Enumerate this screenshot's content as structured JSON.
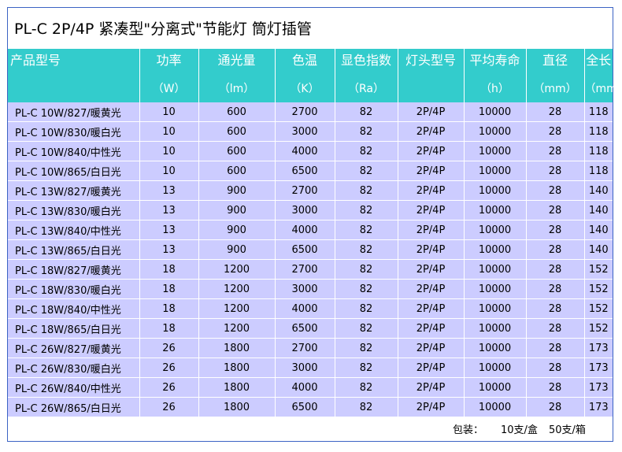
{
  "title": "PL-C 2P/4P 紧凑型\"分离式\"节能灯 筒灯插管",
  "headers": [
    {
      "name": "产品型号",
      "unit": ""
    },
    {
      "name": "功率",
      "unit": "（W）"
    },
    {
      "name": "通光量",
      "unit": "（lm）"
    },
    {
      "name": "色温",
      "unit": "（K）"
    },
    {
      "name": "显色指数",
      "unit": "（Ra）"
    },
    {
      "name": "灯头型号",
      "unit": ""
    },
    {
      "name": "平均寿命",
      "unit": "（h）"
    },
    {
      "name": "直径",
      "unit": "（mm）"
    },
    {
      "name": "全长",
      "unit": "（mm）"
    }
  ],
  "rows": [
    [
      "PL-C 10W/827/暖黄光",
      "10",
      "600",
      "2700",
      "82",
      "2P/4P",
      "10000",
      "28",
      "118"
    ],
    [
      "PL-C 10W/830/暖白光",
      "10",
      "600",
      "3000",
      "82",
      "2P/4P",
      "10000",
      "28",
      "118"
    ],
    [
      "PL-C 10W/840/中性光",
      "10",
      "600",
      "4000",
      "82",
      "2P/4P",
      "10000",
      "28",
      "118"
    ],
    [
      "PL-C 10W/865/白日光",
      "10",
      "600",
      "6500",
      "82",
      "2P/4P",
      "10000",
      "28",
      "118"
    ],
    [
      "PL-C 13W/827/暖黄光",
      "13",
      "900",
      "2700",
      "82",
      "2P/4P",
      "10000",
      "28",
      "140"
    ],
    [
      "PL-C 13W/830/暖白光",
      "13",
      "900",
      "3000",
      "82",
      "2P/4P",
      "10000",
      "28",
      "140"
    ],
    [
      "PL-C 13W/840/中性光",
      "13",
      "900",
      "4000",
      "82",
      "2P/4P",
      "10000",
      "28",
      "140"
    ],
    [
      "PL-C 13W/865/白日光",
      "13",
      "900",
      "6500",
      "82",
      "2P/4P",
      "10000",
      "28",
      "140"
    ],
    [
      "PL-C 18W/827/暖黄光",
      "18",
      "1200",
      "2700",
      "82",
      "2P/4P",
      "10000",
      "28",
      "152"
    ],
    [
      "PL-C 18W/830/暖白光",
      "18",
      "1200",
      "3000",
      "82",
      "2P/4P",
      "10000",
      "28",
      "152"
    ],
    [
      "PL-C 18W/840/中性光",
      "18",
      "1200",
      "4000",
      "82",
      "2P/4P",
      "10000",
      "28",
      "152"
    ],
    [
      "PL-C 18W/865/白日光",
      "18",
      "1200",
      "6500",
      "82",
      "2P/4P",
      "10000",
      "28",
      "152"
    ],
    [
      "PL-C 26W/827/暖黄光",
      "26",
      "1800",
      "2700",
      "82",
      "2P/4P",
      "10000",
      "28",
      "173"
    ],
    [
      "PL-C 26W/830/暖白光",
      "26",
      "1800",
      "3000",
      "82",
      "2P/4P",
      "10000",
      "28",
      "173"
    ],
    [
      "PL-C 26W/840/中性光",
      "26",
      "1800",
      "4000",
      "82",
      "2P/4P",
      "10000",
      "28",
      "173"
    ],
    [
      "PL-C 26W/865/白日光",
      "26",
      "1800",
      "6500",
      "82",
      "2P/4P",
      "10000",
      "28",
      "173"
    ]
  ],
  "footer": {
    "pack_label": "包装：",
    "per_box": "10支/盒",
    "per_case": "50支/箱"
  },
  "colors": {
    "header_bg": "#33cccc",
    "row_bg": "#ccccff",
    "frame_border": "#3b63c4"
  }
}
